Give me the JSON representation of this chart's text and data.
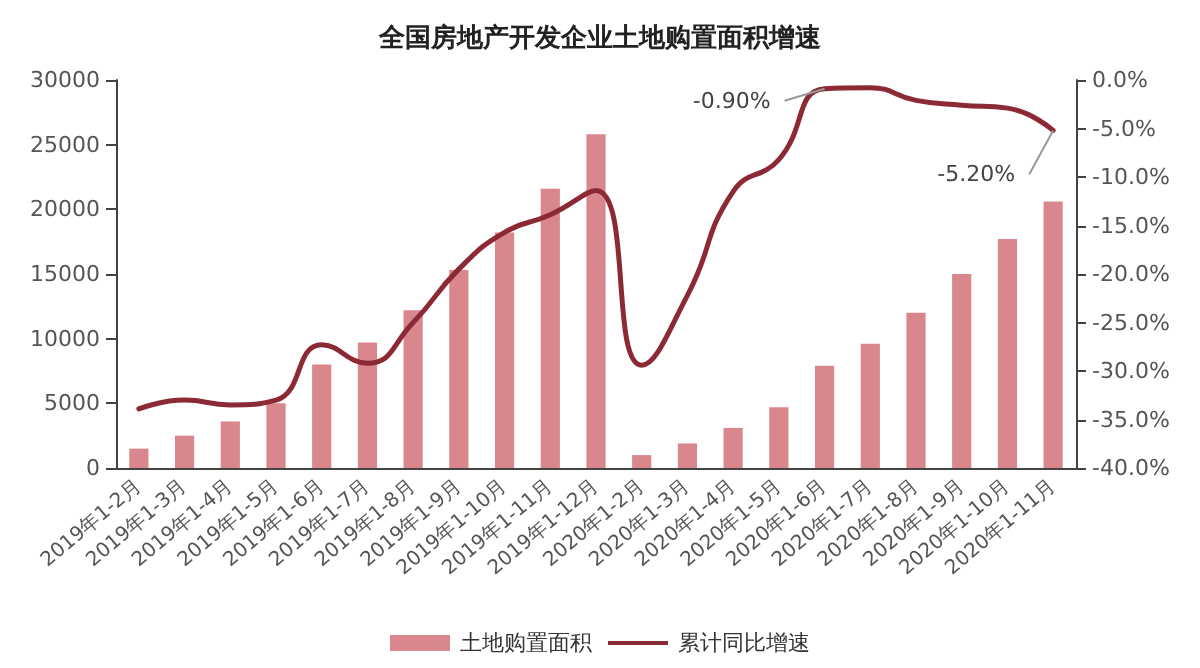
{
  "chart_data": {
    "type": "bar",
    "title": "全国房地产开发企业土地购置面积增速",
    "categories": [
      "2019年1-2月",
      "2019年1-3月",
      "2019年1-4月",
      "2019年1-5月",
      "2019年1-6月",
      "2019年1-7月",
      "2019年1-8月",
      "2019年1-9月",
      "2019年1-10月",
      "2019年1-11月",
      "2019年1-12月",
      "2020年1-2月",
      "2020年1-3月",
      "2020年1-4月",
      "2020年1-5月",
      "2020年1-6月",
      "2020年1-7月",
      "2020年1-8月",
      "2020年1-9月",
      "2020年1-10月",
      "2020年1-11月"
    ],
    "series": [
      {
        "name": "土地购置面积",
        "type": "bar",
        "color": "#d9878c",
        "values": [
          1500,
          2500,
          3600,
          5000,
          8000,
          9700,
          12200,
          15300,
          18200,
          21600,
          25800,
          1000,
          1900,
          3100,
          4700,
          7900,
          9600,
          12000,
          15000,
          17700,
          20600
        ]
      },
      {
        "name": "累计同比增速",
        "type": "line",
        "axis": "y2",
        "color": "#8b2a35",
        "values": [
          -33.9,
          -33.0,
          -33.5,
          -33.0,
          -27.3,
          -29.2,
          -25.0,
          -19.5,
          -15.7,
          -13.9,
          -11.4,
          -29.4,
          -22.2,
          -11.5,
          -8.2,
          -0.9,
          -0.8,
          -2.1,
          -2.6,
          -2.9,
          -5.2
        ],
        "value_labels": [
          null,
          null,
          null,
          null,
          null,
          null,
          null,
          null,
          null,
          null,
          null,
          null,
          null,
          null,
          null,
          "-0.90%",
          null,
          null,
          null,
          null,
          "-5.20%"
        ]
      }
    ],
    "ylim": [
      0,
      30000
    ],
    "yticks": [
      0,
      5000,
      10000,
      15000,
      20000,
      25000,
      30000
    ],
    "y2lim": [
      -40,
      0
    ],
    "y2ticks": [
      {
        "value": -40,
        "label": "-40.0%"
      },
      {
        "value": -35,
        "label": "-35.0%"
      },
      {
        "value": -30,
        "label": "-30.0%"
      },
      {
        "value": -25,
        "label": "-25.0%"
      },
      {
        "value": -20,
        "label": "-20.0%"
      },
      {
        "value": -15,
        "label": "-15.0%"
      },
      {
        "value": -10,
        "label": "-10.0%"
      },
      {
        "value": -5,
        "label": "-5.0%"
      },
      {
        "value": 0,
        "label": "0.0%"
      }
    ],
    "legend": "bottom",
    "grid": false,
    "marker": "none",
    "line_style": "solid"
  }
}
